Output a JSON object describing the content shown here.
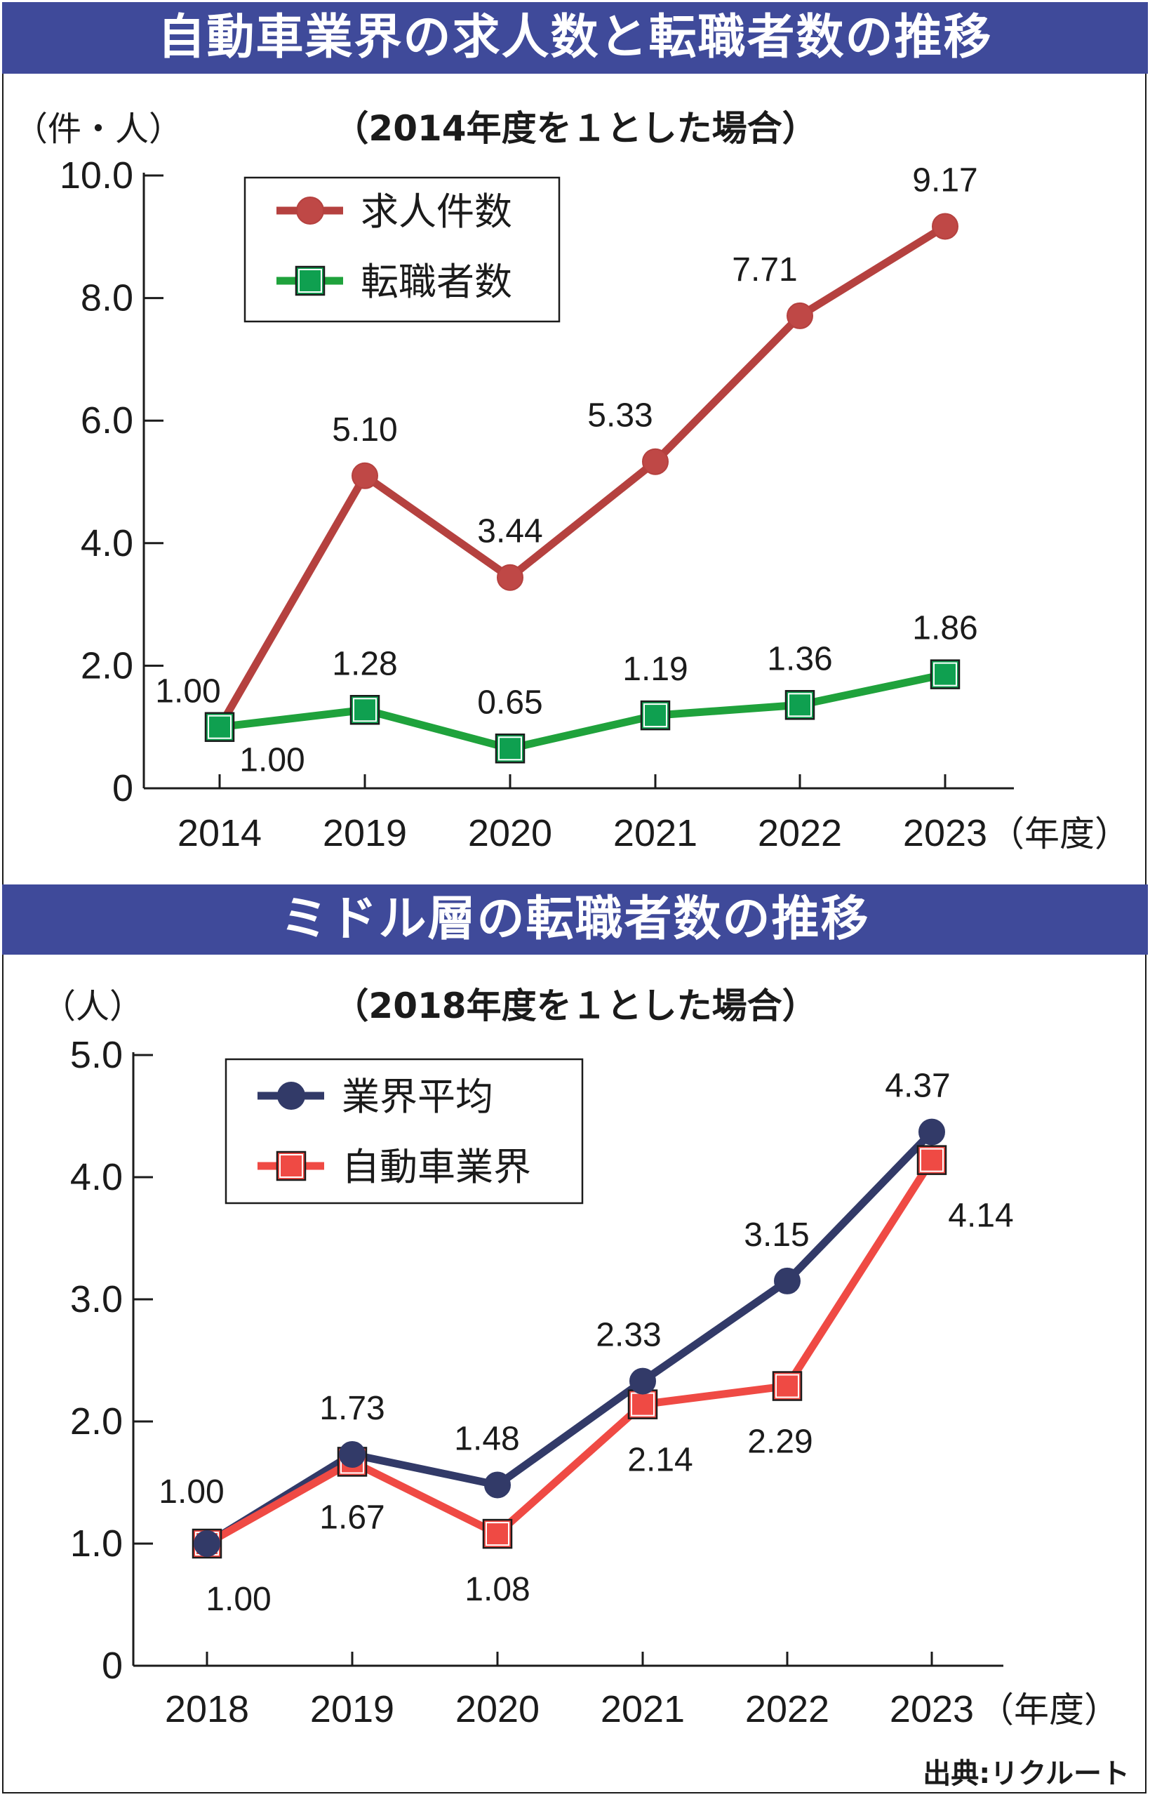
{
  "charts": [
    {
      "banner": "自動車業界の求人数と転職者数の推移",
      "subtitle": "（2014年度を１とした場合）",
      "yunit": "（件・人）",
      "xunit": "（年度）",
      "ymax": 10,
      "yticks": [
        {
          "v": 0,
          "label": "0"
        },
        {
          "v": 2,
          "label": "2.0"
        },
        {
          "v": 4,
          "label": "4.0"
        },
        {
          "v": 6,
          "label": "6.0"
        },
        {
          "v": 8,
          "label": "8.0"
        },
        {
          "v": 10,
          "label": "10.0"
        }
      ]
    },
    {
      "banner": "ミドル層の転職者数の推移",
      "subtitle": "（2018年度を１とした場合）",
      "yunit": "（人）",
      "xunit": "（年度）",
      "ymax": 5,
      "yticks": [
        {
          "v": 0,
          "label": "0"
        },
        {
          "v": 1,
          "label": "1.0"
        },
        {
          "v": 2,
          "label": "2.0"
        },
        {
          "v": 3,
          "label": "3.0"
        },
        {
          "v": 4,
          "label": "4.0"
        },
        {
          "v": 5,
          "label": "5.0"
        }
      ]
    }
  ],
  "source": "出典:リクルート",
  "colors": {
    "banner": "#3f4a9a",
    "jobs": "#b5413f",
    "jobs_fill": "#bf4846",
    "changers": "#1fa23c",
    "changers_fill": "#0fa050",
    "industry_avg": "#323a68",
    "auto_industry": "#ef4a44",
    "axis": "#1b1b1b"
  },
  "chart_data": [
    {
      "type": "line",
      "title": "自動車業界の求人数と転職者数の推移",
      "subtitle": "（2014年度を１とした場合）",
      "xlabel": "（年度）",
      "ylabel": "（件・人）",
      "categories": [
        "2014",
        "2019",
        "2020",
        "2021",
        "2022",
        "2023"
      ],
      "ylim": [
        0,
        10
      ],
      "legend_position": "top-left",
      "series": [
        {
          "name": "求人件数",
          "marker": "circle",
          "values": [
            1.0,
            5.1,
            3.44,
            5.33,
            7.71,
            9.17
          ],
          "labels": [
            "1.00",
            "5.10",
            "3.44",
            "5.33",
            "7.71",
            "9.17"
          ]
        },
        {
          "name": "転職者数",
          "marker": "square",
          "values": [
            1.0,
            1.28,
            0.65,
            1.19,
            1.36,
            1.86
          ],
          "labels": [
            "1.00",
            "1.28",
            "0.65",
            "1.19",
            "1.36",
            "1.86"
          ]
        }
      ]
    },
    {
      "type": "line",
      "title": "ミドル層の転職者数の推移",
      "subtitle": "（2018年度を１とした場合）",
      "xlabel": "（年度）",
      "ylabel": "（人）",
      "categories": [
        "2018",
        "2019",
        "2020",
        "2021",
        "2022",
        "2023"
      ],
      "ylim": [
        0,
        5
      ],
      "legend_position": "top-left",
      "series": [
        {
          "name": "業界平均",
          "marker": "circle",
          "values": [
            1.0,
            1.73,
            1.48,
            2.33,
            3.15,
            4.37
          ],
          "labels": [
            "1.00",
            "1.73",
            "1.48",
            "2.33",
            "3.15",
            "4.37"
          ]
        },
        {
          "name": "自動車業界",
          "marker": "square",
          "values": [
            1.0,
            1.67,
            1.08,
            2.14,
            2.29,
            4.14
          ],
          "labels": [
            "1.00",
            "1.67",
            "1.08",
            "2.14",
            "2.29",
            "4.14"
          ]
        }
      ]
    }
  ]
}
